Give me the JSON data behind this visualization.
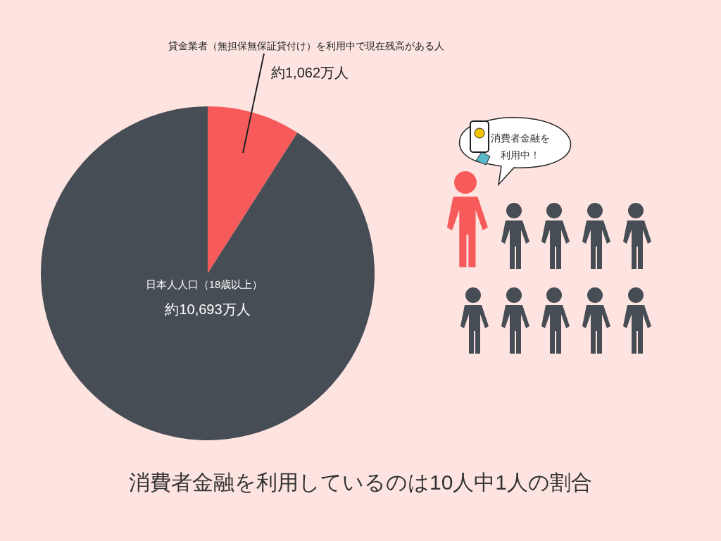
{
  "chart_data": {
    "type": "pie",
    "categories": [
      "貸金業者（無担保無保証貸付け）を利用中で現在残高がある人",
      "日本人人口（18歳以上）"
    ],
    "values": [
      1062,
      10693
    ],
    "colors": [
      "#f75a5a",
      "#474d55"
    ],
    "value_labels": [
      "約1,062万人",
      "約10,693万人"
    ],
    "annotations": [
      "消費者金融を利用中！",
      "消費者金融を利用しているのは10人中1人の割合"
    ]
  }
}
